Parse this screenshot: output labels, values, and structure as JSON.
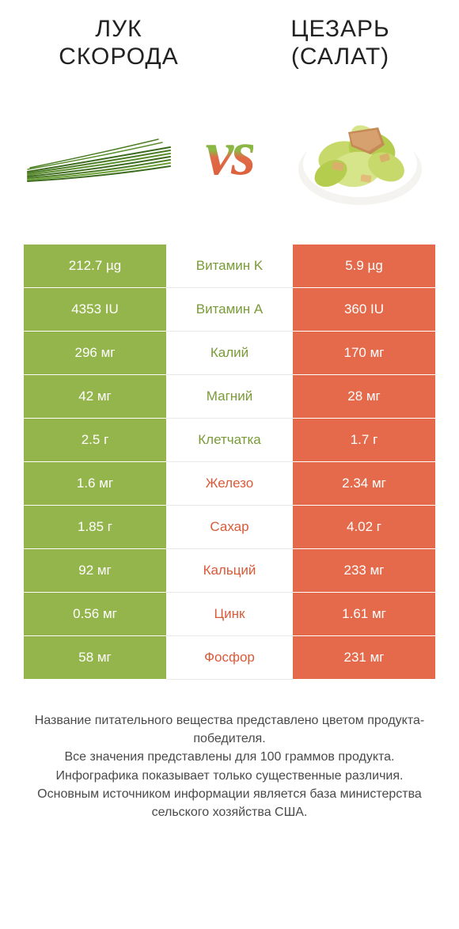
{
  "colors": {
    "left": "#94b44c",
    "right": "#e56a4b",
    "text_white": "#ffffff",
    "mid_green": "#7a9a38",
    "mid_orange": "#d95a38",
    "footer": "#4a4a4a"
  },
  "header": {
    "left_title": "Лук скорода",
    "right_title": "Цезарь (салат)",
    "vs": "vs"
  },
  "rows": [
    {
      "name": "Витамин K",
      "left": "212.7 µg",
      "right": "5.9 µg",
      "winner": "left"
    },
    {
      "name": "Витамин A",
      "left": "4353 IU",
      "right": "360 IU",
      "winner": "left"
    },
    {
      "name": "Калий",
      "left": "296 мг",
      "right": "170 мг",
      "winner": "left"
    },
    {
      "name": "Магний",
      "left": "42 мг",
      "right": "28 мг",
      "winner": "left"
    },
    {
      "name": "Клетчатка",
      "left": "2.5 г",
      "right": "1.7 г",
      "winner": "left"
    },
    {
      "name": "Железо",
      "left": "1.6 мг",
      "right": "2.34 мг",
      "winner": "right"
    },
    {
      "name": "Сахар",
      "left": "1.85 г",
      "right": "4.02 г",
      "winner": "right"
    },
    {
      "name": "Кальций",
      "left": "92 мг",
      "right": "233 мг",
      "winner": "right"
    },
    {
      "name": "Цинк",
      "left": "0.56 мг",
      "right": "1.61 мг",
      "winner": "right"
    },
    {
      "name": "Фосфор",
      "left": "58 мг",
      "right": "231 мг",
      "winner": "right"
    }
  ],
  "footer": [
    "Название питательного вещества представлено цветом продукта-победителя.",
    "Все значения представлены для 100 граммов продукта.",
    "Инфографика показывает только существенные различия.",
    "Основным источником информации является база министерства сельского хозяйства США."
  ]
}
